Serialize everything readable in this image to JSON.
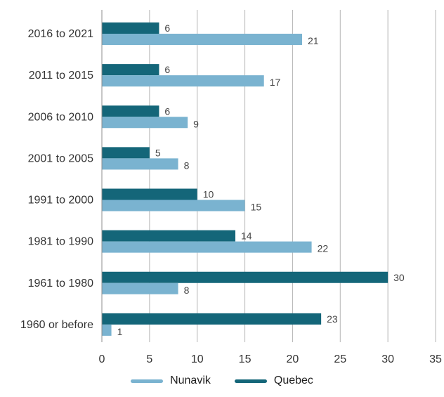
{
  "chart_data": {
    "type": "bar",
    "orientation": "horizontal",
    "categories": [
      "2016 to 2021",
      "2011 to 2015",
      "2006 to 2010",
      "2001 to 2005",
      "1991 to 2000",
      "1981 to 1990",
      "1961 to 1980",
      "1960 or before"
    ],
    "series": [
      {
        "name": "Quebec",
        "color": "#146679",
        "values": [
          6,
          6,
          6,
          5,
          10,
          14,
          30,
          23
        ]
      },
      {
        "name": "Nunavik",
        "color": "#7ab3d0",
        "values": [
          21,
          17,
          9,
          8,
          15,
          22,
          8,
          1
        ]
      }
    ],
    "xlim": [
      0,
      35
    ],
    "xticks": [
      0,
      5,
      10,
      15,
      20,
      25,
      30,
      35
    ],
    "grid": "vertical",
    "legend": {
      "placement": "bottom",
      "order": [
        "Nunavik",
        "Quebec"
      ]
    },
    "title": "",
    "xlabel": "",
    "ylabel": ""
  }
}
